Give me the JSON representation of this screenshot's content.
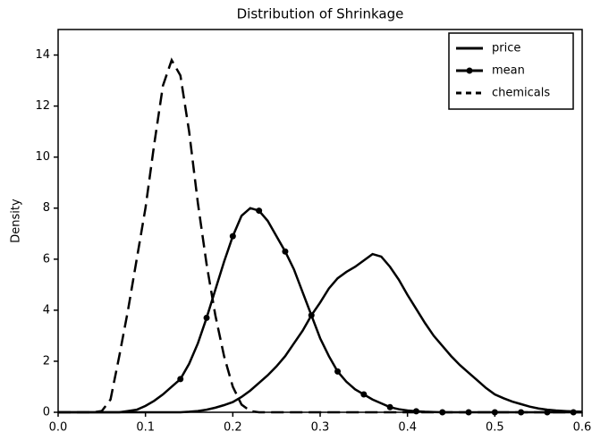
{
  "chart_data": {
    "type": "line",
    "title": "Distribution of Shrinkage",
    "ylabel": "Density",
    "x": [
      0,
      0.01,
      0.02,
      0.03,
      0.04,
      0.05,
      0.06,
      0.07,
      0.08,
      0.09,
      0.1,
      0.11,
      0.12,
      0.13,
      0.14,
      0.15,
      0.16,
      0.17,
      0.18,
      0.19,
      0.2,
      0.21,
      0.22,
      0.23,
      0.24,
      0.25,
      0.26,
      0.27,
      0.28,
      0.29,
      0.3,
      0.31,
      0.32,
      0.33,
      0.34,
      0.35,
      0.36,
      0.37,
      0.38,
      0.39,
      0.4,
      0.41,
      0.42,
      0.43,
      0.44,
      0.45,
      0.46,
      0.47,
      0.48,
      0.49,
      0.5,
      0.51,
      0.52,
      0.53,
      0.54,
      0.55,
      0.56,
      0.57,
      0.58,
      0.59,
      0.6
    ],
    "series": [
      {
        "name": "price",
        "color": "#000000",
        "linestyle": "solid",
        "values": [
          0,
          0,
          0,
          0,
          0,
          0,
          0,
          0,
          0,
          0,
          0,
          0,
          0,
          0,
          0,
          0.02,
          0.05,
          0.1,
          0.18,
          0.28,
          0.4,
          0.6,
          0.85,
          1.15,
          1.45,
          1.8,
          2.2,
          2.7,
          3.2,
          3.8,
          4.3,
          4.85,
          5.25,
          5.5,
          5.7,
          5.95,
          6.2,
          6.1,
          5.7,
          5.2,
          4.6,
          4.05,
          3.5,
          3.0,
          2.6,
          2.2,
          1.85,
          1.55,
          1.25,
          0.95,
          0.7,
          0.55,
          0.42,
          0.32,
          0.22,
          0.15,
          0.1,
          0.07,
          0.05,
          0.03,
          0.02
        ]
      },
      {
        "name": "mean",
        "color": "#000000",
        "linestyle": "solid",
        "marker": "o",
        "markevery": [
          14,
          3
        ],
        "values": [
          0,
          0,
          0,
          0,
          0,
          0,
          0,
          0,
          0.05,
          0.1,
          0.25,
          0.45,
          0.7,
          1.0,
          1.3,
          1.9,
          2.7,
          3.7,
          4.8,
          5.9,
          6.9,
          7.7,
          8.0,
          7.9,
          7.5,
          6.9,
          6.3,
          5.6,
          4.7,
          3.8,
          2.9,
          2.2,
          1.6,
          1.2,
          0.9,
          0.7,
          0.5,
          0.35,
          0.2,
          0.12,
          0.07,
          0.04,
          0.02,
          0.01,
          0,
          0,
          0,
          0,
          0,
          0,
          0,
          0,
          0,
          0,
          0,
          0,
          0,
          0,
          0,
          0,
          0
        ]
      },
      {
        "name": "chemicals",
        "color": "#000000",
        "linestyle": "dashed",
        "values": [
          0,
          0,
          0,
          0,
          0,
          0.05,
          0.5,
          2.2,
          4.0,
          6.0,
          8.0,
          10.5,
          12.8,
          13.8,
          13.2,
          11.0,
          8.2,
          5.8,
          3.8,
          2.2,
          1.0,
          0.3,
          0.05,
          0,
          0,
          0,
          0,
          0,
          0,
          0,
          0,
          0,
          0,
          0,
          0,
          0,
          0,
          0,
          0,
          0,
          0,
          0,
          0,
          0,
          0,
          0,
          0,
          0,
          0,
          0,
          0,
          0,
          0,
          0,
          0,
          0,
          0,
          0,
          0,
          0,
          0
        ]
      }
    ],
    "xlim": [
      0,
      0.6
    ],
    "ylim": [
      0,
      15
    ],
    "xticks": [
      {
        "value": 0,
        "label": "0.0"
      },
      0.1,
      0.2,
      0.3,
      0.4,
      0.5,
      0.6
    ],
    "yticks": [
      0,
      2,
      4,
      6,
      8,
      10,
      12,
      14
    ],
    "grid": false,
    "legend": "upper right"
  }
}
